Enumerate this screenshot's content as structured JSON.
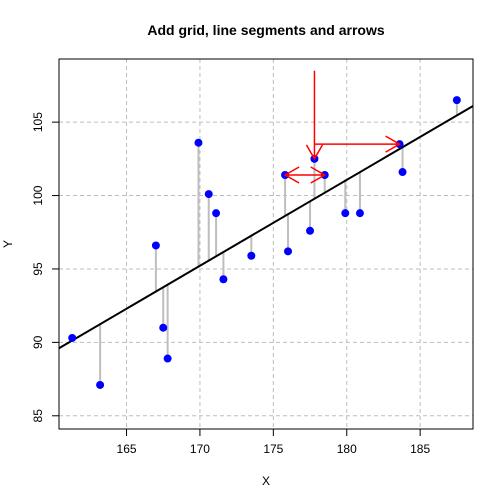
{
  "chart_data": {
    "type": "scatter",
    "title": "Add grid, line segments and arrows",
    "xlabel": "X",
    "ylabel": "Y",
    "xlim": [
      160.4,
      188.6
    ],
    "ylim": [
      84.1,
      109.3
    ],
    "xticks": [
      165,
      170,
      175,
      180,
      185
    ],
    "yticks": [
      85,
      90,
      95,
      100,
      105
    ],
    "grid": true,
    "grid_color": "#bebebe",
    "point_color": "#0000ff",
    "segment_color": "#bebebe",
    "regression_color": "#000000",
    "annotation_color": "#ff0000",
    "regression_line": {
      "x": [
        160.4,
        188.6
      ],
      "y": [
        89.6,
        106.1
      ]
    },
    "points": [
      {
        "x": 161.3,
        "y": 90.3,
        "fitted": 90.1
      },
      {
        "x": 163.2,
        "y": 87.1,
        "fitted": 91.3
      },
      {
        "x": 167.0,
        "y": 96.6,
        "fitted": 93.5
      },
      {
        "x": 167.5,
        "y": 91.0,
        "fitted": 93.8
      },
      {
        "x": 167.8,
        "y": 88.9,
        "fitted": 94.0
      },
      {
        "x": 169.9,
        "y": 103.6,
        "fitted": 95.2
      },
      {
        "x": 170.6,
        "y": 100.1,
        "fitted": 95.6
      },
      {
        "x": 171.1,
        "y": 98.8,
        "fitted": 95.9
      },
      {
        "x": 171.6,
        "y": 94.3,
        "fitted": 96.2
      },
      {
        "x": 173.5,
        "y": 95.9,
        "fitted": 97.3
      },
      {
        "x": 175.8,
        "y": 101.4,
        "fitted": 98.6
      },
      {
        "x": 176.0,
        "y": 96.2,
        "fitted": 98.8
      },
      {
        "x": 177.5,
        "y": 97.6,
        "fitted": 99.6
      },
      {
        "x": 177.8,
        "y": 102.5,
        "fitted": 99.8
      },
      {
        "x": 178.5,
        "y": 101.4,
        "fitted": 100.2
      },
      {
        "x": 179.9,
        "y": 98.8,
        "fitted": 101.1
      },
      {
        "x": 180.9,
        "y": 98.8,
        "fitted": 101.6
      },
      {
        "x": 183.6,
        "y": 103.5,
        "fitted": 103.2
      },
      {
        "x": 183.8,
        "y": 101.6,
        "fitted": 103.3
      },
      {
        "x": 187.5,
        "y": 106.5,
        "fitted": 105.5
      }
    ],
    "arrows": [
      {
        "x0": 177.8,
        "y0": 108.5,
        "x1": 177.8,
        "y1": 102.5,
        "ends": "end"
      },
      {
        "x0": 177.8,
        "y0": 103.5,
        "x1": 183.6,
        "y1": 103.5,
        "ends": "end"
      },
      {
        "x0": 175.8,
        "y0": 101.4,
        "x1": 178.5,
        "y1": 101.4,
        "ends": "both"
      }
    ]
  }
}
